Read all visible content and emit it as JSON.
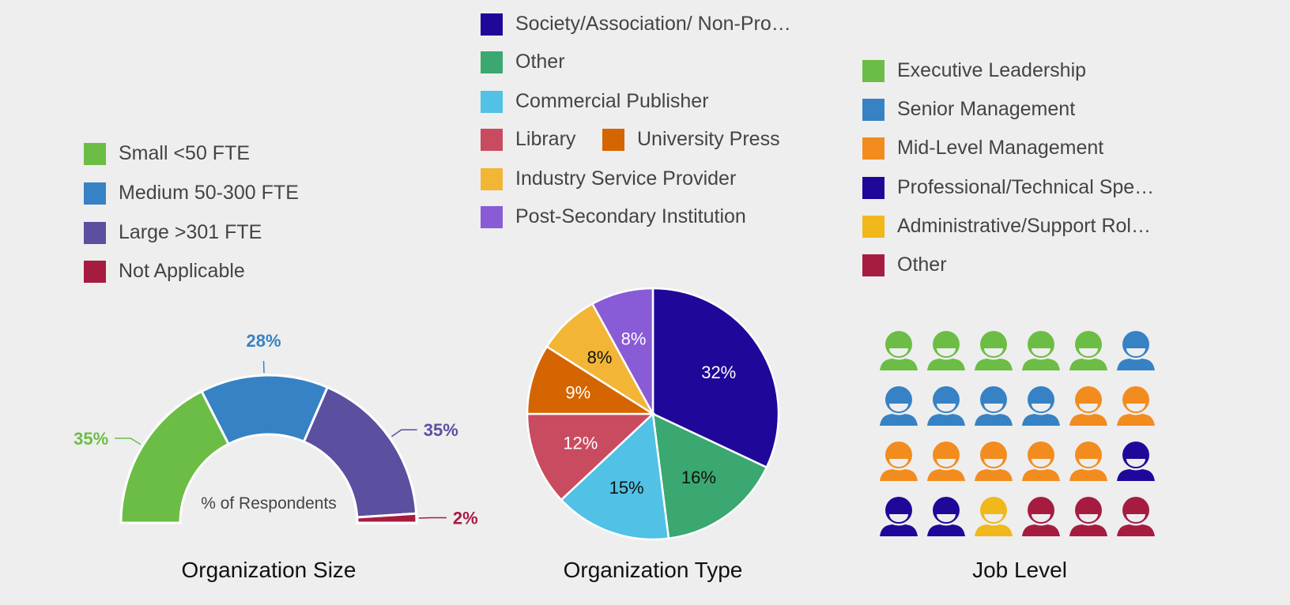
{
  "chart_data": [
    {
      "type": "pie",
      "variant": "semicircle-donut",
      "title": "Organization Size",
      "center_label": "% of Respondents",
      "categories": [
        "Small <50 FTE",
        "Medium 50-300 FTE",
        "Large >301 FTE",
        "Not Applicable"
      ],
      "values": [
        35,
        28,
        35,
        2
      ],
      "labels": [
        "35%",
        "28%",
        "35%",
        "2%"
      ],
      "colors": [
        "#6cbd45",
        "#3682c4",
        "#5b4fa0",
        "#a61c40"
      ],
      "legend": "top-left"
    },
    {
      "type": "pie",
      "title": "Organization Type",
      "categories": [
        "Society/Association/ Non-Pro…",
        "Other",
        "Commercial Publisher",
        "Library",
        "University Press",
        "Industry Service Provider",
        "Post-Secondary Institution"
      ],
      "values": [
        32,
        16,
        15,
        12,
        9,
        8,
        8
      ],
      "labels": [
        "32%",
        "16%",
        "15%",
        "12%",
        "9%",
        "8%",
        "8%"
      ],
      "colors": [
        "#1f0899",
        "#3aa870",
        "#51c1e5",
        "#c94b60",
        "#d46500",
        "#f3b535",
        "#8a5bd6"
      ],
      "label_colors": [
        "#ffffff",
        "#111111",
        "#111111",
        "#ffffff",
        "#ffffff",
        "#111111",
        "#ffffff"
      ],
      "legend": "top"
    },
    {
      "type": "pictogram",
      "title": "Job Level",
      "categories": [
        "Executive Leadership",
        "Senior Management",
        "Mid-Level Management",
        "Professional/Technical Spe…",
        "Administrative/Support Rol…",
        "Other"
      ],
      "values": [
        5,
        5,
        7,
        3,
        1,
        3
      ],
      "colors": [
        "#6cbd45",
        "#3682c4",
        "#f28c1f",
        "#1f0899",
        "#f0b81a",
        "#a61c40"
      ],
      "icon": "person-icon",
      "grid_columns": 6,
      "legend": "top"
    }
  ]
}
